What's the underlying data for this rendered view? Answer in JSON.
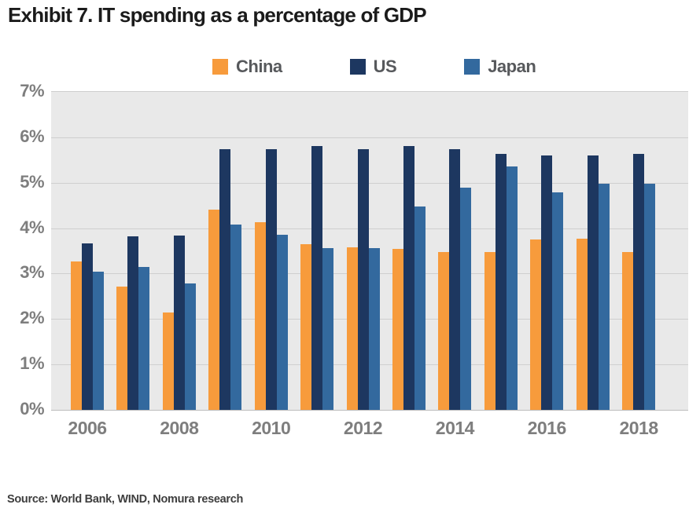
{
  "title": "Exhibit 7. IT spending as a percentage of GDP",
  "source": "Source: World Bank, WIND, Nomura research",
  "colors": {
    "china": "#f79b3c",
    "us": "#1d3760",
    "japan": "#33699e",
    "plot_bg": "#e9e9e9",
    "gridline": "#cfcfcf",
    "axis_text": "#7e7e7e",
    "legend_text": "#57595c",
    "title_text": "#1b1b1b",
    "source_text": "#3e3e3e"
  },
  "chart_data": {
    "type": "bar",
    "title": "Exhibit 7. IT spending as a percentage of GDP",
    "categories": [
      "2006",
      "2007",
      "2008",
      "2009",
      "2010",
      "2011",
      "2012",
      "2013",
      "2014",
      "2015",
      "2016",
      "2017",
      "2018"
    ],
    "x_tick_labels": [
      "2006",
      "2008",
      "2010",
      "2012",
      "2014",
      "2016",
      "2018"
    ],
    "series": [
      {
        "name": "China",
        "color": "#f79b3c",
        "values": [
          3.27,
          2.71,
          2.15,
          4.4,
          4.13,
          3.65,
          3.58,
          3.55,
          3.48,
          3.48,
          3.75,
          3.76,
          3.48
        ]
      },
      {
        "name": "US",
        "color": "#1d3760",
        "values": [
          3.67,
          3.82,
          3.84,
          5.74,
          5.74,
          5.81,
          5.74,
          5.8,
          5.74,
          5.64,
          5.6,
          5.6,
          5.64
        ]
      },
      {
        "name": "Japan",
        "color": "#33699e",
        "values": [
          3.05,
          3.15,
          2.79,
          4.08,
          3.85,
          3.56,
          3.56,
          4.47,
          4.9,
          5.35,
          4.79,
          4.98,
          4.97
        ]
      }
    ],
    "xlabel": "",
    "ylabel": "",
    "y_ticks": [
      "7%",
      "6%",
      "5%",
      "4%",
      "3%",
      "2%",
      "1%",
      "0%"
    ],
    "ylim": [
      0,
      7
    ],
    "grid": true,
    "legend_position": "top-center"
  }
}
